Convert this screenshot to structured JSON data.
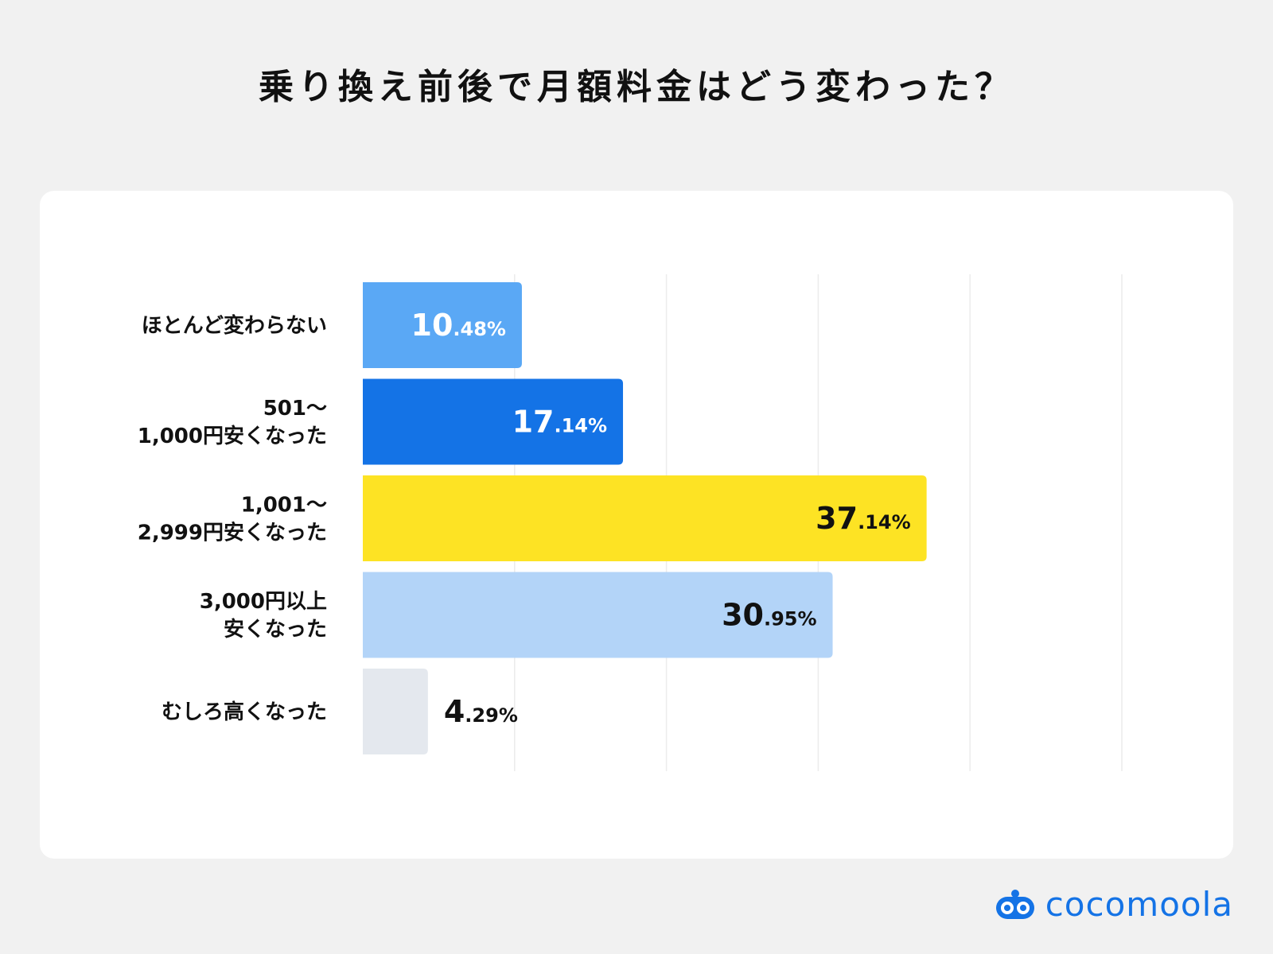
{
  "title": "乗り換え前後で月額料金はどう変わった？",
  "chart_data": {
    "type": "bar",
    "orientation": "horizontal",
    "title": "乗り換え前後で月額料金はどう変わった？",
    "xlim": [
      0,
      50
    ],
    "grid": true,
    "categories": [
      [
        "ほとんど変わらない"
      ],
      [
        "501〜",
        "1,000円安くなった"
      ],
      [
        "1,001〜",
        "2,999円安くなった"
      ],
      [
        "3,000円以上",
        "安くなった"
      ],
      [
        "むしろ高くなった"
      ]
    ],
    "values": [
      10.48,
      17.14,
      37.14,
      30.95,
      4.29
    ],
    "value_labels": [
      {
        "int": "10",
        "dec": ".48%"
      },
      {
        "int": "17",
        "dec": ".14%"
      },
      {
        "int": "37",
        "dec": ".14%"
      },
      {
        "int": "30",
        "dec": ".95%"
      },
      {
        "int": "4",
        "dec": ".29%"
      }
    ],
    "colors": [
      "#5aa8f5",
      "#1473e6",
      "#fde324",
      "#b3d4f8",
      "#e4e8ee"
    ],
    "label_colors": [
      "#ffffff",
      "#ffffff",
      "#111111",
      "#111111",
      "#111111"
    ]
  },
  "logo": {
    "text": "cocomoola",
    "icon": "cocomoola-logo-icon",
    "color": "#1473e6"
  }
}
